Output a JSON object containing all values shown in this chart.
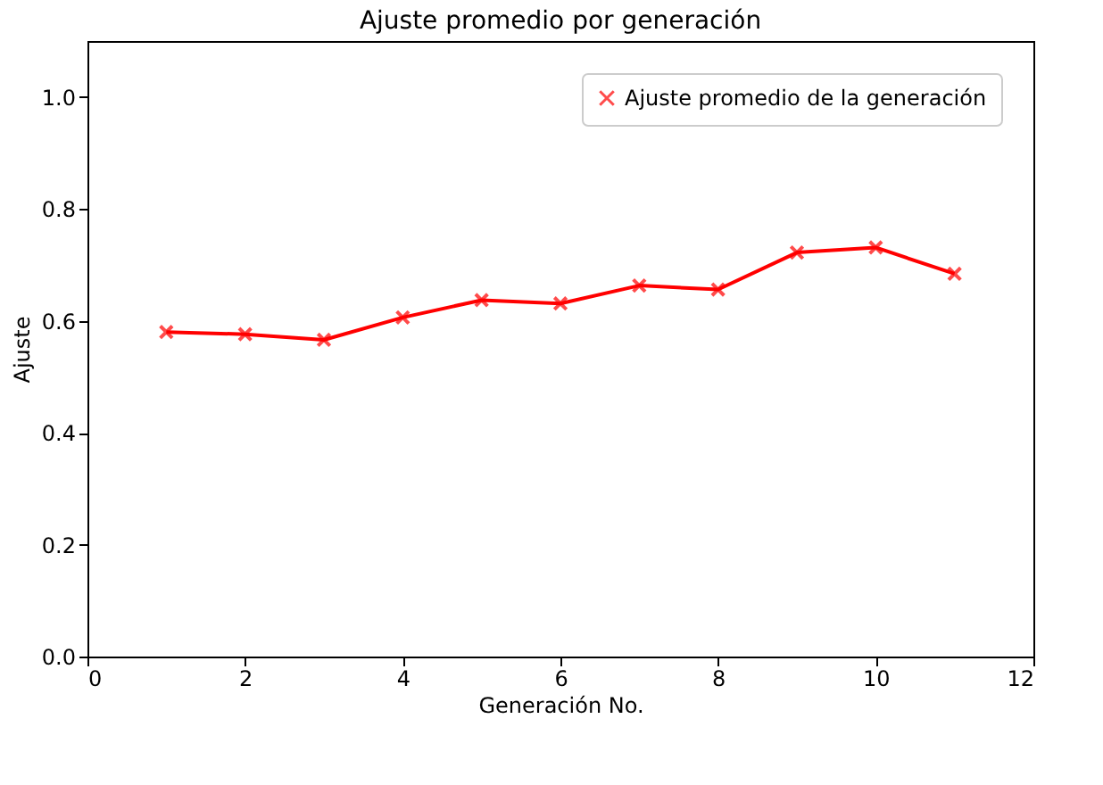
{
  "chart_data": {
    "type": "line",
    "title": "Ajuste promedio por generación",
    "xlabel": "Generación No.",
    "ylabel": "Ajuste",
    "x": [
      1,
      2,
      3,
      4,
      5,
      6,
      7,
      8,
      9,
      10,
      11
    ],
    "series": [
      {
        "name": "Ajuste promedio de la generación",
        "color": "#ff0000",
        "values": [
          0.58,
          0.576,
          0.566,
          0.606,
          0.637,
          0.631,
          0.663,
          0.656,
          0.722,
          0.731,
          0.684
        ]
      }
    ],
    "xlim": [
      0,
      12
    ],
    "xticks": [
      0,
      2,
      4,
      6,
      8,
      10,
      12
    ],
    "ylim": [
      0,
      1.1
    ],
    "yticks": [
      {
        "value": 0,
        "label": "0.0"
      },
      0.2,
      0.4,
      0.6,
      0.8,
      {
        "value": 1,
        "label": "1.0"
      }
    ],
    "marker": "cross",
    "line_style": "solid",
    "legend": "top right",
    "grid": false
  }
}
